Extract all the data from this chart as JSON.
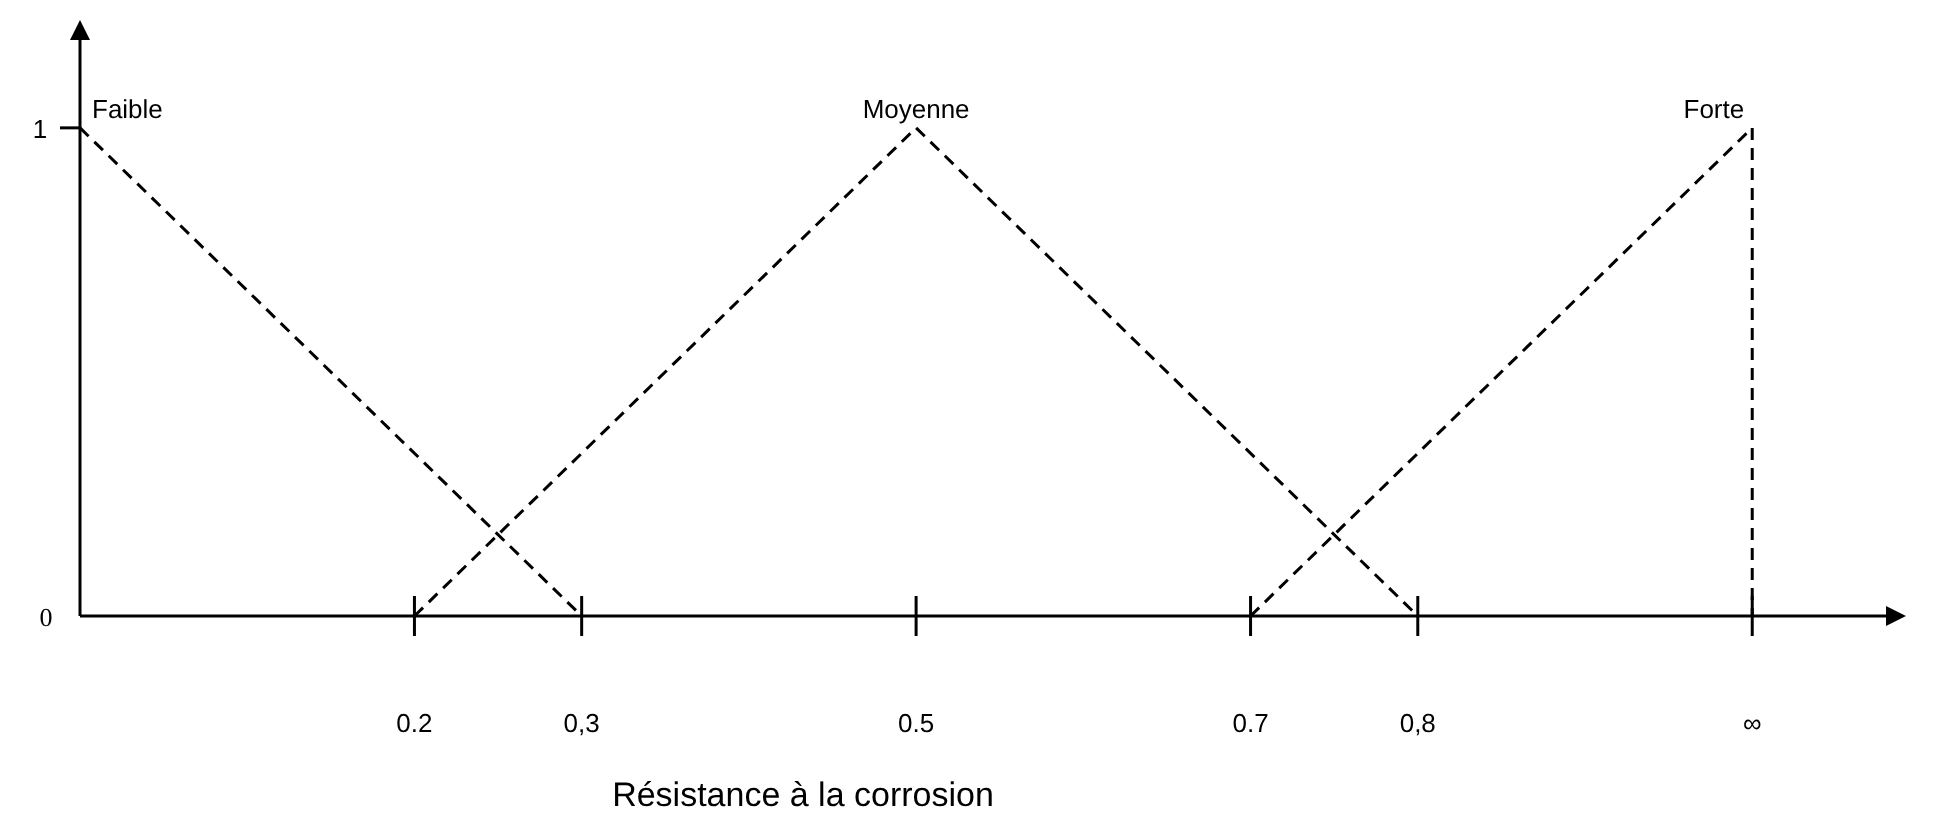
{
  "chart_data": {
    "type": "line",
    "xlabel": "Résistance à la corrosion",
    "xlim": [
      0,
      1.08
    ],
    "ylim": [
      0,
      1.18
    ],
    "xticks": [
      0.2,
      {
        "value": 0.3,
        "label": "0,3"
      },
      0.5,
      0.7,
      {
        "value": 0.8,
        "label": "0,8"
      },
      {
        "value": 1,
        "label": "∞"
      }
    ],
    "yticks": [
      0,
      1
    ],
    "series": [
      {
        "name": "Faible",
        "color": "#000000",
        "x": [
          0,
          0.3
        ],
        "values": [
          1,
          0
        ]
      },
      {
        "name": "Moyenne",
        "color": "#000000",
        "x": [
          0.2,
          0.5,
          0.8
        ],
        "values": [
          0,
          1,
          0
        ]
      },
      {
        "name": "Forte",
        "color": "#000000",
        "x": [
          0.7,
          1,
          1
        ],
        "values": [
          0,
          1,
          0
        ]
      }
    ],
    "line_style": "dashed",
    "marker": "none",
    "grid": false
  }
}
